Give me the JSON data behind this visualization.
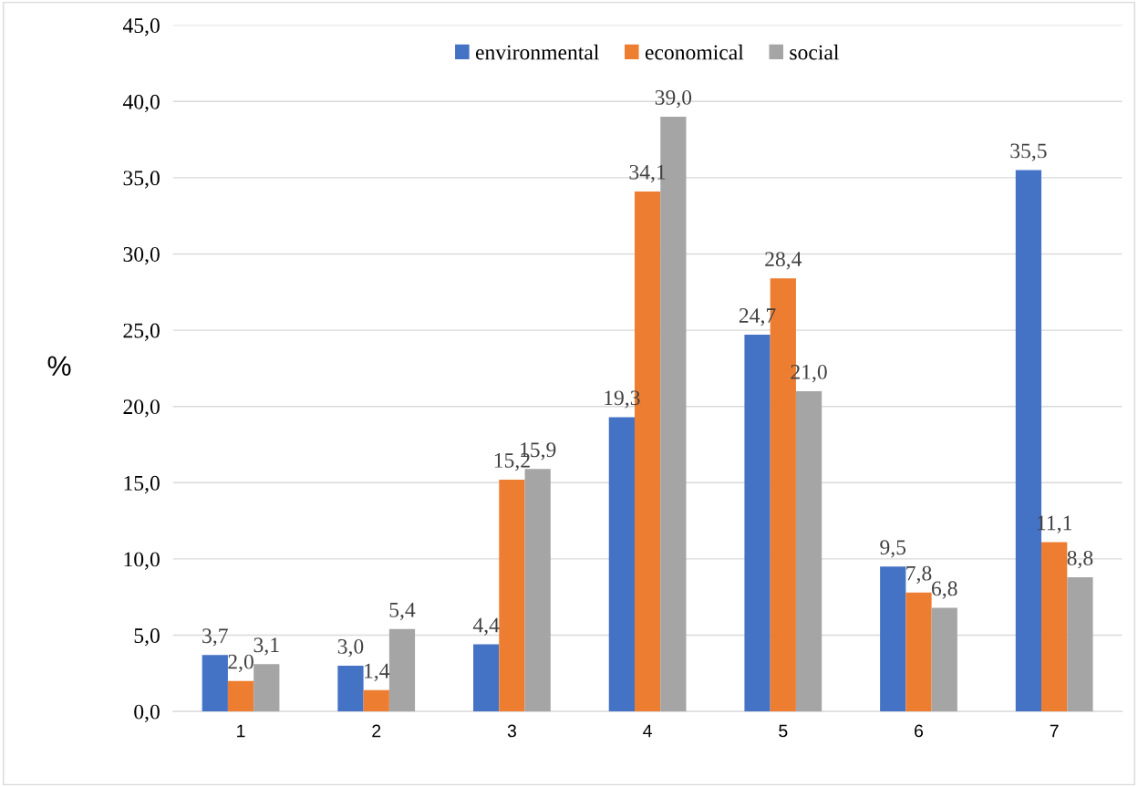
{
  "chart_data": {
    "type": "bar",
    "ylabel": "%",
    "categories": [
      "1",
      "2",
      "3",
      "4",
      "5",
      "6",
      "7"
    ],
    "series": [
      {
        "name": "environmental",
        "color": "#4472c4",
        "values": [
          3.7,
          3.0,
          4.4,
          19.3,
          24.7,
          9.5,
          35.5
        ],
        "value_labels": [
          "3,7",
          "3,0",
          "4,4",
          "19,3",
          "24,7",
          "9,5",
          "35,5"
        ]
      },
      {
        "name": "economical",
        "color": "#ed7d31",
        "values": [
          2.0,
          1.4,
          15.2,
          34.1,
          28.4,
          7.8,
          11.1
        ],
        "value_labels": [
          "2,0",
          "1,4",
          "15,2",
          "34,1",
          "28,4",
          "7,8",
          "11,1"
        ]
      },
      {
        "name": "social",
        "color": "#a5a5a5",
        "values": [
          3.1,
          5.4,
          15.9,
          39.0,
          21.0,
          6.8,
          8.8
        ],
        "value_labels": [
          "3,1",
          "5,4",
          "15,9",
          "39,0",
          "21,0",
          "6,8",
          "8,8"
        ]
      }
    ],
    "ylim": [
      0,
      45
    ],
    "yticks": [
      {
        "value": 0,
        "label": "0,0"
      },
      {
        "value": 5,
        "label": "5,0"
      },
      {
        "value": 10,
        "label": "10,0"
      },
      {
        "value": 15,
        "label": "15,0"
      },
      {
        "value": 20,
        "label": "20,0"
      },
      {
        "value": 25,
        "label": "25,0"
      },
      {
        "value": 30,
        "label": "30,0"
      },
      {
        "value": 35,
        "label": "35,0"
      },
      {
        "value": 40,
        "label": "40,0"
      },
      {
        "value": 45,
        "label": "45,0"
      }
    ],
    "grid": "y",
    "legend": "top"
  }
}
